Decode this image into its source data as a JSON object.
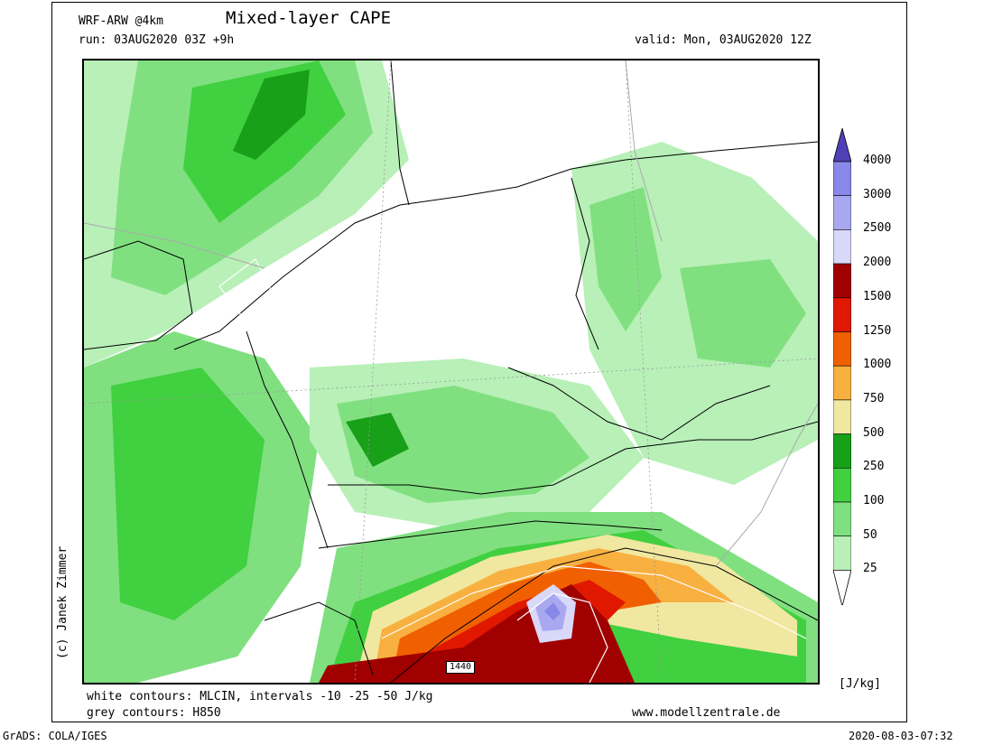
{
  "header": {
    "model": "WRF-ARW @4km",
    "title": "Mixed-layer CAPE",
    "run": "run: 03AUG2020 03Z +9h",
    "valid": "valid: Mon, 03AUG2020 12Z"
  },
  "footer": {
    "white_contours": "white contours: MLCIN, intervals -10 -25 -50 J/kg",
    "grey_contours": "grey contours: H850",
    "website": "www.modellzentrale.de",
    "grads": "GrADS: COLA/IGES",
    "timestamp": "2020-08-03-07:32"
  },
  "copyright": "(c) Janek Zimmer",
  "map_label": "1440",
  "colorbar": {
    "unit": "[J/kg]",
    "levels": [
      {
        "label": "4000",
        "color": "#5040b8"
      },
      {
        "label": "3000",
        "color": "#8888e8"
      },
      {
        "label": "2500",
        "color": "#a8a8f0"
      },
      {
        "label": "2000",
        "color": "#d8d8f8"
      },
      {
        "label": "1500",
        "color": "#a00000"
      },
      {
        "label": "1250",
        "color": "#e01800"
      },
      {
        "label": "1000",
        "color": "#f06000"
      },
      {
        "label": "750",
        "color": "#f8b040"
      },
      {
        "label": "500",
        "color": "#f0e8a0"
      },
      {
        "label": "250",
        "color": "#18a018"
      },
      {
        "label": "100",
        "color": "#40d040"
      },
      {
        "label": "50",
        "color": "#80e080"
      },
      {
        "label": "25",
        "color": "#b8f0b8"
      }
    ],
    "below_color": "#ffffff"
  }
}
